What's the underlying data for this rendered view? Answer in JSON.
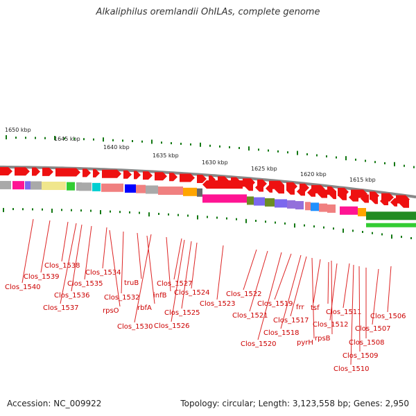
{
  "title": "Alkaliphilus oremlandii OhILAs, complete genome",
  "footer": {
    "accession": "Accession: NC_009922",
    "topology": "Topology: circular; Length: 3,123,558 bp; Genes: 2,950"
  },
  "scale": {
    "ticks": [
      {
        "label": "1650 kbp"
      },
      {
        "label": "1645 kbp"
      },
      {
        "label": "1640 kbp"
      },
      {
        "label": "1635 kbp"
      },
      {
        "label": "1630 kbp"
      },
      {
        "label": "1625 kbp"
      },
      {
        "label": "1620 kbp"
      },
      {
        "label": "1615 kbp"
      }
    ]
  },
  "colors": {
    "forward_gene": "#ee1111",
    "label": "#cc0000",
    "leader": "#dd2222",
    "tick": "#117711",
    "backbone": "#888888"
  },
  "genes": [
    {
      "label": "Clos_1540"
    },
    {
      "label": "Clos_1539"
    },
    {
      "label": "Clos_1538"
    },
    {
      "label": "Clos_1537"
    },
    {
      "label": "Clos_1536"
    },
    {
      "label": "Clos_1535"
    },
    {
      "label": "Clos_1534"
    },
    {
      "label": "rpsO"
    },
    {
      "label": "Clos_1532"
    },
    {
      "label": "truB"
    },
    {
      "label": "Clos_1530"
    },
    {
      "label": "rbfA"
    },
    {
      "label": "infB"
    },
    {
      "label": "Clos_1527"
    },
    {
      "label": "Clos_1526"
    },
    {
      "label": "Clos_1525"
    },
    {
      "label": "Clos_1524"
    },
    {
      "label": "Clos_1523"
    },
    {
      "label": "Clos_1522"
    },
    {
      "label": "Clos_1521"
    },
    {
      "label": "Clos_1520"
    },
    {
      "label": "Clos_1519"
    },
    {
      "label": "Clos_1518"
    },
    {
      "label": "Clos_1517"
    },
    {
      "label": "pyrH"
    },
    {
      "label": "frr"
    },
    {
      "label": "rpsB"
    },
    {
      "label": "tsf"
    },
    {
      "label": "Clos_1512"
    },
    {
      "label": "Clos_1511"
    },
    {
      "label": "Clos_1510"
    },
    {
      "label": "Clos_1509"
    },
    {
      "label": "Clos_1508"
    },
    {
      "label": "Clos_1507"
    },
    {
      "label": "Clos_1506"
    }
  ],
  "cog_palette": [
    "#ff1493",
    "#7b68ee",
    "#f0e68c",
    "#a9a9a9",
    "#00ced1",
    "#f08080",
    "#0000ff",
    "#ffa500",
    "#696969",
    "#6b8e23",
    "#1e90ff",
    "#9370db",
    "#32cd32",
    "#228b22",
    "#db7093"
  ]
}
